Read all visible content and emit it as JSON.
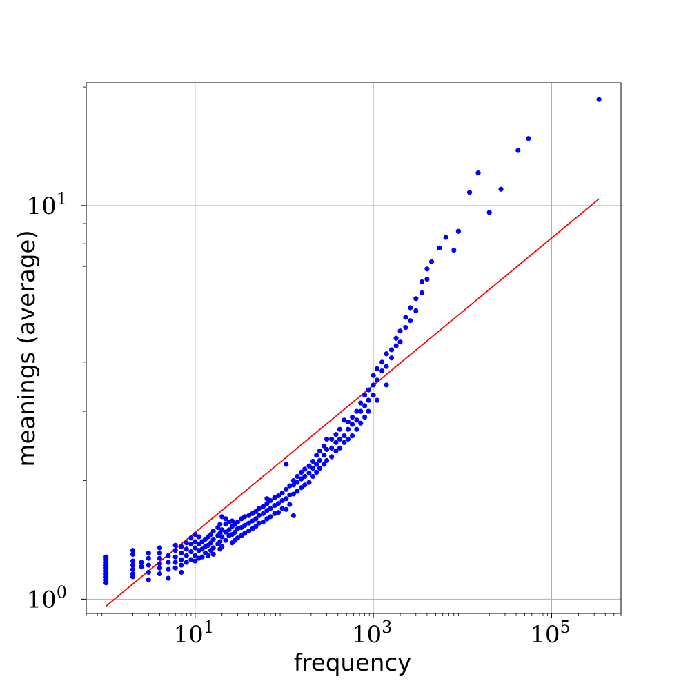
{
  "chart_data": {
    "type": "scatter",
    "title": "",
    "xlabel": "frequency",
    "ylabel": "meanings (average)",
    "xscale": "log",
    "yscale": "log",
    "xlim": [
      0.6,
      600000
    ],
    "ylim": [
      0.92,
      20.5
    ],
    "grid": true,
    "x_ticks": [
      {
        "base": "10",
        "exp": "1",
        "value": 10
      },
      {
        "base": "10",
        "exp": "3",
        "value": 1000
      },
      {
        "base": "10",
        "exp": "5",
        "value": 100000
      }
    ],
    "y_ticks": [
      {
        "base": "10",
        "exp": "0",
        "value": 1
      },
      {
        "base": "10",
        "exp": "1",
        "value": 10
      }
    ],
    "series": [
      {
        "kind": "points",
        "color": "#0000ff",
        "points": [
          [
            1,
            1.1
          ],
          [
            1,
            1.12
          ],
          [
            1,
            1.14
          ],
          [
            1,
            1.16
          ],
          [
            1,
            1.18
          ],
          [
            1,
            1.2
          ],
          [
            1,
            1.22
          ],
          [
            1,
            1.24
          ],
          [
            1,
            1.26
          ],
          [
            1,
            1.28
          ],
          [
            2,
            1.14
          ],
          [
            2,
            1.16
          ],
          [
            2,
            1.19
          ],
          [
            2,
            1.22
          ],
          [
            2,
            1.25
          ],
          [
            2,
            1.3
          ],
          [
            2,
            1.33
          ],
          [
            2.5,
            1.21
          ],
          [
            2.5,
            1.24
          ],
          [
            3,
            1.12
          ],
          [
            3,
            1.17
          ],
          [
            3,
            1.22
          ],
          [
            3,
            1.27
          ],
          [
            3,
            1.31
          ],
          [
            4,
            1.16
          ],
          [
            4,
            1.2
          ],
          [
            4,
            1.23
          ],
          [
            4,
            1.27
          ],
          [
            4,
            1.31
          ],
          [
            4,
            1.35
          ],
          [
            5,
            1.13
          ],
          [
            5,
            1.19
          ],
          [
            5,
            1.24
          ],
          [
            5,
            1.29
          ],
          [
            6,
            1.2
          ],
          [
            6,
            1.24
          ],
          [
            6,
            1.28
          ],
          [
            6,
            1.33
          ],
          [
            6,
            1.37
          ],
          [
            7,
            1.17
          ],
          [
            7,
            1.22
          ],
          [
            7,
            1.26
          ],
          [
            7,
            1.31
          ],
          [
            7,
            1.36
          ],
          [
            8,
            1.24
          ],
          [
            8,
            1.29
          ],
          [
            8,
            1.34
          ],
          [
            8,
            1.39
          ],
          [
            9,
            1.26
          ],
          [
            9,
            1.32
          ],
          [
            9,
            1.38
          ],
          [
            9,
            1.43
          ],
          [
            10,
            1.25
          ],
          [
            10,
            1.29
          ],
          [
            10,
            1.35
          ],
          [
            10,
            1.4
          ],
          [
            10,
            1.46
          ],
          [
            11,
            1.27
          ],
          [
            11,
            1.33
          ],
          [
            11,
            1.38
          ],
          [
            11,
            1.44
          ],
          [
            12,
            1.28
          ],
          [
            12,
            1.34
          ],
          [
            12,
            1.4
          ],
          [
            13,
            1.31
          ],
          [
            13,
            1.36
          ],
          [
            13,
            1.42
          ],
          [
            14,
            1.29
          ],
          [
            14,
            1.37
          ],
          [
            14,
            1.44
          ],
          [
            15,
            1.33
          ],
          [
            15,
            1.39
          ],
          [
            15,
            1.46
          ],
          [
            16,
            1.3
          ],
          [
            16,
            1.35
          ],
          [
            16,
            1.42
          ],
          [
            16,
            1.49
          ],
          [
            18,
            1.38
          ],
          [
            18,
            1.45
          ],
          [
            18,
            1.52
          ],
          [
            19,
            1.34
          ],
          [
            19,
            1.4
          ],
          [
            19,
            1.47
          ],
          [
            19,
            1.55
          ],
          [
            20,
            1.36
          ],
          [
            20,
            1.44
          ],
          [
            20,
            1.5
          ],
          [
            20,
            1.62
          ],
          [
            22,
            1.41
          ],
          [
            22,
            1.48
          ],
          [
            22,
            1.55
          ],
          [
            22,
            1.6
          ],
          [
            24,
            1.45
          ],
          [
            24,
            1.5
          ],
          [
            24,
            1.57
          ],
          [
            26,
            1.39
          ],
          [
            26,
            1.46
          ],
          [
            26,
            1.53
          ],
          [
            26,
            1.58
          ],
          [
            28,
            1.41
          ],
          [
            28,
            1.48
          ],
          [
            28,
            1.55
          ],
          [
            30,
            1.43
          ],
          [
            30,
            1.51
          ],
          [
            30,
            1.57
          ],
          [
            33,
            1.45
          ],
          [
            33,
            1.52
          ],
          [
            33,
            1.6
          ],
          [
            36,
            1.47
          ],
          [
            36,
            1.54
          ],
          [
            36,
            1.62
          ],
          [
            40,
            1.49
          ],
          [
            40,
            1.56
          ],
          [
            40,
            1.63
          ],
          [
            44,
            1.51
          ],
          [
            44,
            1.58
          ],
          [
            44,
            1.65
          ],
          [
            48,
            1.53
          ],
          [
            48,
            1.6
          ],
          [
            48,
            1.67
          ],
          [
            52,
            1.56
          ],
          [
            52,
            1.63
          ],
          [
            52,
            1.7
          ],
          [
            58,
            1.57
          ],
          [
            58,
            1.65
          ],
          [
            58,
            1.72
          ],
          [
            64,
            1.6
          ],
          [
            64,
            1.68
          ],
          [
            64,
            1.75
          ],
          [
            64,
            1.8
          ],
          [
            70,
            1.62
          ],
          [
            70,
            1.7
          ],
          [
            70,
            1.78
          ],
          [
            78,
            1.65
          ],
          [
            78,
            1.73
          ],
          [
            78,
            1.81
          ],
          [
            86,
            1.66
          ],
          [
            86,
            1.75
          ],
          [
            86,
            1.83
          ],
          [
            95,
            1.7
          ],
          [
            95,
            1.78
          ],
          [
            95,
            1.86
          ],
          [
            105,
            1.69
          ],
          [
            105,
            1.8
          ],
          [
            105,
            1.9
          ],
          [
            105,
            2.2
          ],
          [
            115,
            1.74
          ],
          [
            115,
            1.84
          ],
          [
            115,
            1.94
          ],
          [
            127,
            1.63
          ],
          [
            127,
            1.85
          ],
          [
            127,
            1.95
          ],
          [
            127,
            2.0
          ],
          [
            140,
            1.88
          ],
          [
            140,
            1.98
          ],
          [
            140,
            2.05
          ],
          [
            155,
            1.92
          ],
          [
            155,
            2.02
          ],
          [
            155,
            2.1
          ],
          [
            170,
            1.95
          ],
          [
            170,
            2.05
          ],
          [
            170,
            2.14
          ],
          [
            190,
            1.98
          ],
          [
            190,
            2.09
          ],
          [
            190,
            2.18
          ],
          [
            210,
            2.05
          ],
          [
            210,
            2.15
          ],
          [
            210,
            2.24
          ],
          [
            230,
            2.1
          ],
          [
            230,
            2.2
          ],
          [
            230,
            2.32
          ],
          [
            250,
            2.15
          ],
          [
            250,
            2.25
          ],
          [
            250,
            2.38
          ],
          [
            280,
            2.2
          ],
          [
            280,
            2.32
          ],
          [
            280,
            2.45
          ],
          [
            300,
            2.25
          ],
          [
            300,
            2.4
          ],
          [
            300,
            2.55
          ],
          [
            340,
            2.3
          ],
          [
            340,
            2.42
          ],
          [
            340,
            2.55
          ],
          [
            380,
            2.38
          ],
          [
            380,
            2.5
          ],
          [
            380,
            2.62
          ],
          [
            420,
            2.42
          ],
          [
            420,
            2.55
          ],
          [
            420,
            2.7
          ],
          [
            470,
            2.5
          ],
          [
            470,
            2.6
          ],
          [
            470,
            2.85
          ],
          [
            520,
            2.55
          ],
          [
            520,
            2.7
          ],
          [
            520,
            2.82
          ],
          [
            580,
            2.6
          ],
          [
            580,
            2.78
          ],
          [
            580,
            2.9
          ],
          [
            650,
            2.7
          ],
          [
            650,
            2.85
          ],
          [
            650,
            3.0
          ],
          [
            720,
            2.8
          ],
          [
            720,
            3.0
          ],
          [
            720,
            3.15
          ],
          [
            800,
            2.9
          ],
          [
            800,
            3.1
          ],
          [
            800,
            3.3
          ],
          [
            880,
            3.0
          ],
          [
            880,
            3.2
          ],
          [
            880,
            3.4
          ],
          [
            1000,
            3.3
          ],
          [
            1000,
            3.5
          ],
          [
            1000,
            3.7
          ],
          [
            1100,
            3.2
          ],
          [
            1100,
            3.6
          ],
          [
            1100,
            3.85
          ],
          [
            1250,
            3.8
          ],
          [
            1250,
            4.0
          ],
          [
            1400,
            3.5
          ],
          [
            1400,
            3.9
          ],
          [
            1400,
            4.2
          ],
          [
            1600,
            4.1
          ],
          [
            1600,
            4.3
          ],
          [
            1800,
            4.4
          ],
          [
            1800,
            4.6
          ],
          [
            2000,
            4.5
          ],
          [
            2000,
            4.8
          ],
          [
            2300,
            4.9
          ],
          [
            2300,
            5.2
          ],
          [
            2600,
            5.1
          ],
          [
            2600,
            5.5
          ],
          [
            3000,
            5.4
          ],
          [
            3000,
            5.8
          ],
          [
            3500,
            6.0
          ],
          [
            3500,
            6.4
          ],
          [
            4000,
            6.5
          ],
          [
            4000,
            6.9
          ],
          [
            4500,
            7.2
          ],
          [
            5500,
            7.8
          ],
          [
            6500,
            8.3
          ],
          [
            8000,
            7.7
          ],
          [
            9000,
            8.6
          ],
          [
            12000,
            10.8
          ],
          [
            15000,
            12.1
          ],
          [
            20000,
            9.6
          ],
          [
            27000,
            11.0
          ],
          [
            42000,
            13.8
          ],
          [
            55000,
            14.8
          ],
          [
            340000,
            18.6
          ]
        ]
      },
      {
        "kind": "line",
        "color": "#ff0000",
        "points": [
          [
            1,
            0.96
          ],
          [
            340000,
            10.4
          ]
        ]
      }
    ]
  }
}
